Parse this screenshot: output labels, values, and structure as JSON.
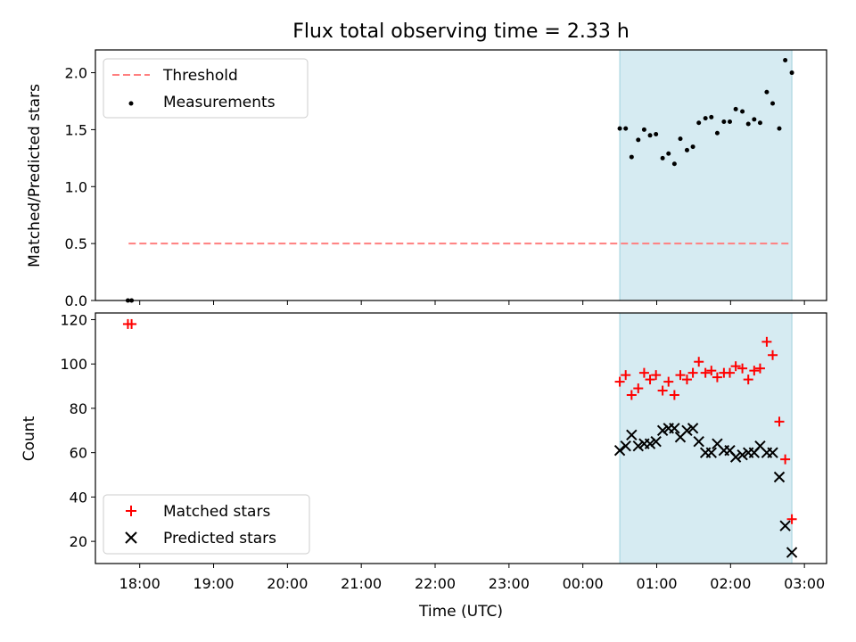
{
  "chart_data": [
    {
      "type": "scatter",
      "title": "Flux total observing time = 2.33 h",
      "ylabel": "Matched/Predicted stars",
      "xlabel": "",
      "ylim": [
        0,
        2.2
      ],
      "yticks": [
        "0.0",
        "0.5",
        "1.0",
        "1.5",
        "2.0"
      ],
      "ytick_values": [
        0,
        0.5,
        1.0,
        1.5,
        2.0
      ],
      "xlim_hours": [
        17.4,
        27.3
      ],
      "shaded_region_hours": [
        24.5,
        26.83
      ],
      "threshold": {
        "name": "Threshold",
        "value": 0.5,
        "x_range_hours": [
          17.85,
          26.83
        ],
        "color": "#ff7f7f"
      },
      "series": [
        {
          "name": "Measurements",
          "color": "#000000",
          "points": [
            [
              17.84,
              0.0
            ],
            [
              17.89,
              0.0
            ],
            [
              24.5,
              1.51
            ],
            [
              24.58,
              1.51
            ],
            [
              24.66,
              1.26
            ],
            [
              24.75,
              1.41
            ],
            [
              24.83,
              1.5
            ],
            [
              24.91,
              1.45
            ],
            [
              24.99,
              1.46
            ],
            [
              25.08,
              1.25
            ],
            [
              25.16,
              1.29
            ],
            [
              25.24,
              1.2
            ],
            [
              25.32,
              1.42
            ],
            [
              25.41,
              1.32
            ],
            [
              25.49,
              1.35
            ],
            [
              25.57,
              1.56
            ],
            [
              25.66,
              1.6
            ],
            [
              25.74,
              1.61
            ],
            [
              25.82,
              1.47
            ],
            [
              25.91,
              1.57
            ],
            [
              25.99,
              1.57
            ],
            [
              26.07,
              1.68
            ],
            [
              26.16,
              1.66
            ],
            [
              26.24,
              1.55
            ],
            [
              26.32,
              1.59
            ],
            [
              26.4,
              1.56
            ],
            [
              26.49,
              1.83
            ],
            [
              26.57,
              1.73
            ],
            [
              26.66,
              1.51
            ],
            [
              26.74,
              2.11
            ],
            [
              26.83,
              2.0
            ]
          ]
        }
      ]
    },
    {
      "type": "scatter",
      "title": "",
      "ylabel": "Count",
      "xlabel": "Time (UTC)",
      "ylim": [
        10,
        123
      ],
      "yticks": [
        "20",
        "40",
        "60",
        "80",
        "100",
        "120"
      ],
      "ytick_values": [
        20,
        40,
        60,
        80,
        100,
        120
      ],
      "xlim_hours": [
        17.4,
        27.3
      ],
      "shaded_region_hours": [
        24.5,
        26.83
      ],
      "xticks": [
        "18:00",
        "19:00",
        "20:00",
        "21:00",
        "22:00",
        "23:00",
        "00:00",
        "01:00",
        "02:00",
        "03:00"
      ],
      "xtick_hours": [
        18,
        19,
        20,
        21,
        22,
        23,
        24,
        25,
        26,
        27
      ],
      "series": [
        {
          "name": "Matched stars",
          "marker": "plus",
          "color": "#ff0000",
          "points": [
            [
              17.84,
              118
            ],
            [
              17.89,
              118
            ],
            [
              24.5,
              92
            ],
            [
              24.58,
              95
            ],
            [
              24.66,
              86
            ],
            [
              24.75,
              89
            ],
            [
              24.83,
              96
            ],
            [
              24.91,
              93
            ],
            [
              24.99,
              95
            ],
            [
              25.08,
              88
            ],
            [
              25.16,
              92
            ],
            [
              25.24,
              86
            ],
            [
              25.32,
              95
            ],
            [
              25.41,
              93
            ],
            [
              25.49,
              96
            ],
            [
              25.57,
              101
            ],
            [
              25.66,
              96
            ],
            [
              25.74,
              97
            ],
            [
              25.82,
              94
            ],
            [
              25.91,
              96
            ],
            [
              25.99,
              96
            ],
            [
              26.07,
              99
            ],
            [
              26.16,
              98
            ],
            [
              26.24,
              93
            ],
            [
              26.32,
              97
            ],
            [
              26.4,
              98
            ],
            [
              26.49,
              110
            ],
            [
              26.57,
              104
            ],
            [
              26.66,
              74
            ],
            [
              26.74,
              57
            ],
            [
              26.83,
              30
            ]
          ]
        },
        {
          "name": "Predicted stars",
          "marker": "x",
          "color": "#000000",
          "points": [
            [
              24.5,
              61
            ],
            [
              24.58,
              63
            ],
            [
              24.66,
              68
            ],
            [
              24.75,
              63
            ],
            [
              24.83,
              64
            ],
            [
              24.91,
              64
            ],
            [
              24.99,
              65
            ],
            [
              25.08,
              70
            ],
            [
              25.16,
              71
            ],
            [
              25.24,
              71
            ],
            [
              25.32,
              67
            ],
            [
              25.41,
              70
            ],
            [
              25.49,
              71
            ],
            [
              25.57,
              65
            ],
            [
              25.66,
              60
            ],
            [
              25.74,
              60
            ],
            [
              25.82,
              64
            ],
            [
              25.91,
              61
            ],
            [
              25.99,
              61
            ],
            [
              26.07,
              58
            ],
            [
              26.16,
              59
            ],
            [
              26.24,
              60
            ],
            [
              26.32,
              60
            ],
            [
              26.4,
              63
            ],
            [
              26.49,
              60
            ],
            [
              26.57,
              60
            ],
            [
              26.66,
              49
            ],
            [
              26.74,
              27
            ],
            [
              26.83,
              15
            ]
          ]
        }
      ]
    }
  ]
}
